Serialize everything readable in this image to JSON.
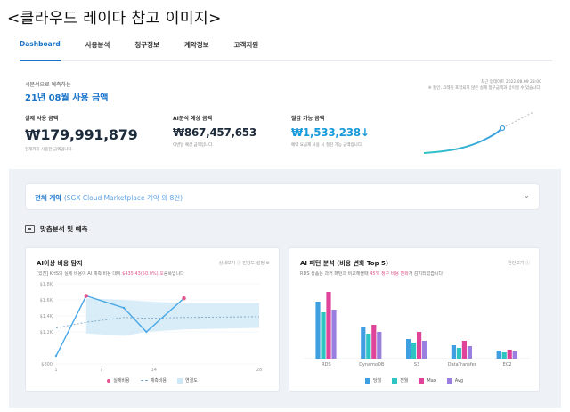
{
  "caption": "<클라우드 레이다 참고 이미지>",
  "nav": {
    "tabs": [
      {
        "label": "Dashboard",
        "active": true
      },
      {
        "label": "사용분석",
        "active": false
      },
      {
        "label": "청구정보",
        "active": false
      },
      {
        "label": "계약정보",
        "active": false
      },
      {
        "label": "고객지원",
        "active": false
      }
    ]
  },
  "summary": {
    "subtitle": "시분석으로 예측하는",
    "title": "21년 08월 사용 금액",
    "side_note_1": "최근 업데이트 2022.08.09 23:00",
    "side_note_2": "※ 할인, 크레딧 포함되지 않은 실제 청구금액과 상이할 수 있습니다.",
    "metrics": [
      {
        "label": "실제 사용 금액",
        "value": "₩179,991,879",
        "note": "현재까지 사용한 금액입니다."
      },
      {
        "label": "AI분석 예상 금액",
        "value": "₩867,457,653",
        "note": "이번달 예상 금액입니다."
      },
      {
        "label": "절감 가능 금액",
        "value": "₩1,533,238↓",
        "note": "예약 요금제 사용 시 절감 가능 금액입니다."
      }
    ]
  },
  "filter": {
    "label": "전체 계약",
    "detail": "(SGX Cloud Marketplace 계약 외 8건)"
  },
  "section": {
    "title": "맞춤분석 및 예측"
  },
  "card1": {
    "title": "AI이상 비용 탐지",
    "tools": "상세보기 ⓘ   민감도 설정 ⚙",
    "sub_prefix": "[있진] KHS의 실제 비용이 AI 예측 비용 대비 ",
    "sub_highlight": "$435.43(50.0%) 오",
    "sub_suffix": "증폭입니다",
    "legend": [
      "실제비용",
      "예측비용",
      "연결도"
    ]
  },
  "card2": {
    "title": "AI 패턴 분석 (비용 변화 Top 5)",
    "tools": "원인보기 ⓘ",
    "sub_prefix": "RDS 상품은 과거 패턴과 비교해볼때 ",
    "sub_highlight": "45% 청구 비용 변화",
    "sub_suffix": "가 감지되었습니다",
    "legend": [
      "당월",
      "전월",
      "Max",
      "Avg"
    ]
  },
  "colors": {
    "accent": "#1a73c9",
    "line_actual": "#4aa8e6",
    "point_actual": "#e0568c",
    "band": "#cfe8f7",
    "bar_current": "#3f9fe0",
    "bar_prev": "#2ec4c4",
    "bar_max": "#e0449a",
    "bar_avg": "#9b7fe0"
  },
  "chart_data": [
    {
      "type": "line",
      "title": "AI이상 비용 탐지",
      "x_ticks": [
        "1",
        "7",
        "14",
        "28"
      ],
      "y_ticks": [
        "$800",
        "$1.2K",
        "$1.4K",
        "$1.6K",
        "$1.8K"
      ],
      "ylim": [
        800,
        1800
      ],
      "xlim": [
        1,
        28
      ],
      "series": [
        {
          "name": "실제비용",
          "x": [
            1,
            5,
            10,
            13,
            18
          ],
          "y": [
            900,
            1650,
            1500,
            1200,
            1620
          ]
        },
        {
          "name": "예측비용",
          "x": [
            1,
            5,
            10,
            13,
            18,
            28
          ],
          "y": [
            1250,
            1320,
            1380,
            1370,
            1380,
            1390
          ]
        }
      ],
      "band": {
        "x": [
          5,
          10,
          13,
          18,
          28
        ],
        "low": [
          1180,
          1150,
          1200,
          1230,
          1250
        ],
        "high": [
          1620,
          1600,
          1580,
          1560,
          1560
        ]
      }
    },
    {
      "type": "bar",
      "title": "AI 패턴 분석 (비용 변화 Top 5)",
      "categories": [
        "RDS",
        "DynamoDB",
        "S3",
        "DataTransfer",
        "EC2"
      ],
      "series": [
        {
          "name": "당월",
          "values": [
            64,
            35,
            22,
            15,
            9
          ]
        },
        {
          "name": "전월",
          "values": [
            52,
            28,
            18,
            12,
            7
          ]
        },
        {
          "name": "Max",
          "values": [
            75,
            38,
            30,
            20,
            10
          ]
        },
        {
          "name": "Avg",
          "values": [
            55,
            30,
            20,
            14,
            8
          ]
        }
      ],
      "ylim": [
        0,
        80
      ]
    }
  ]
}
